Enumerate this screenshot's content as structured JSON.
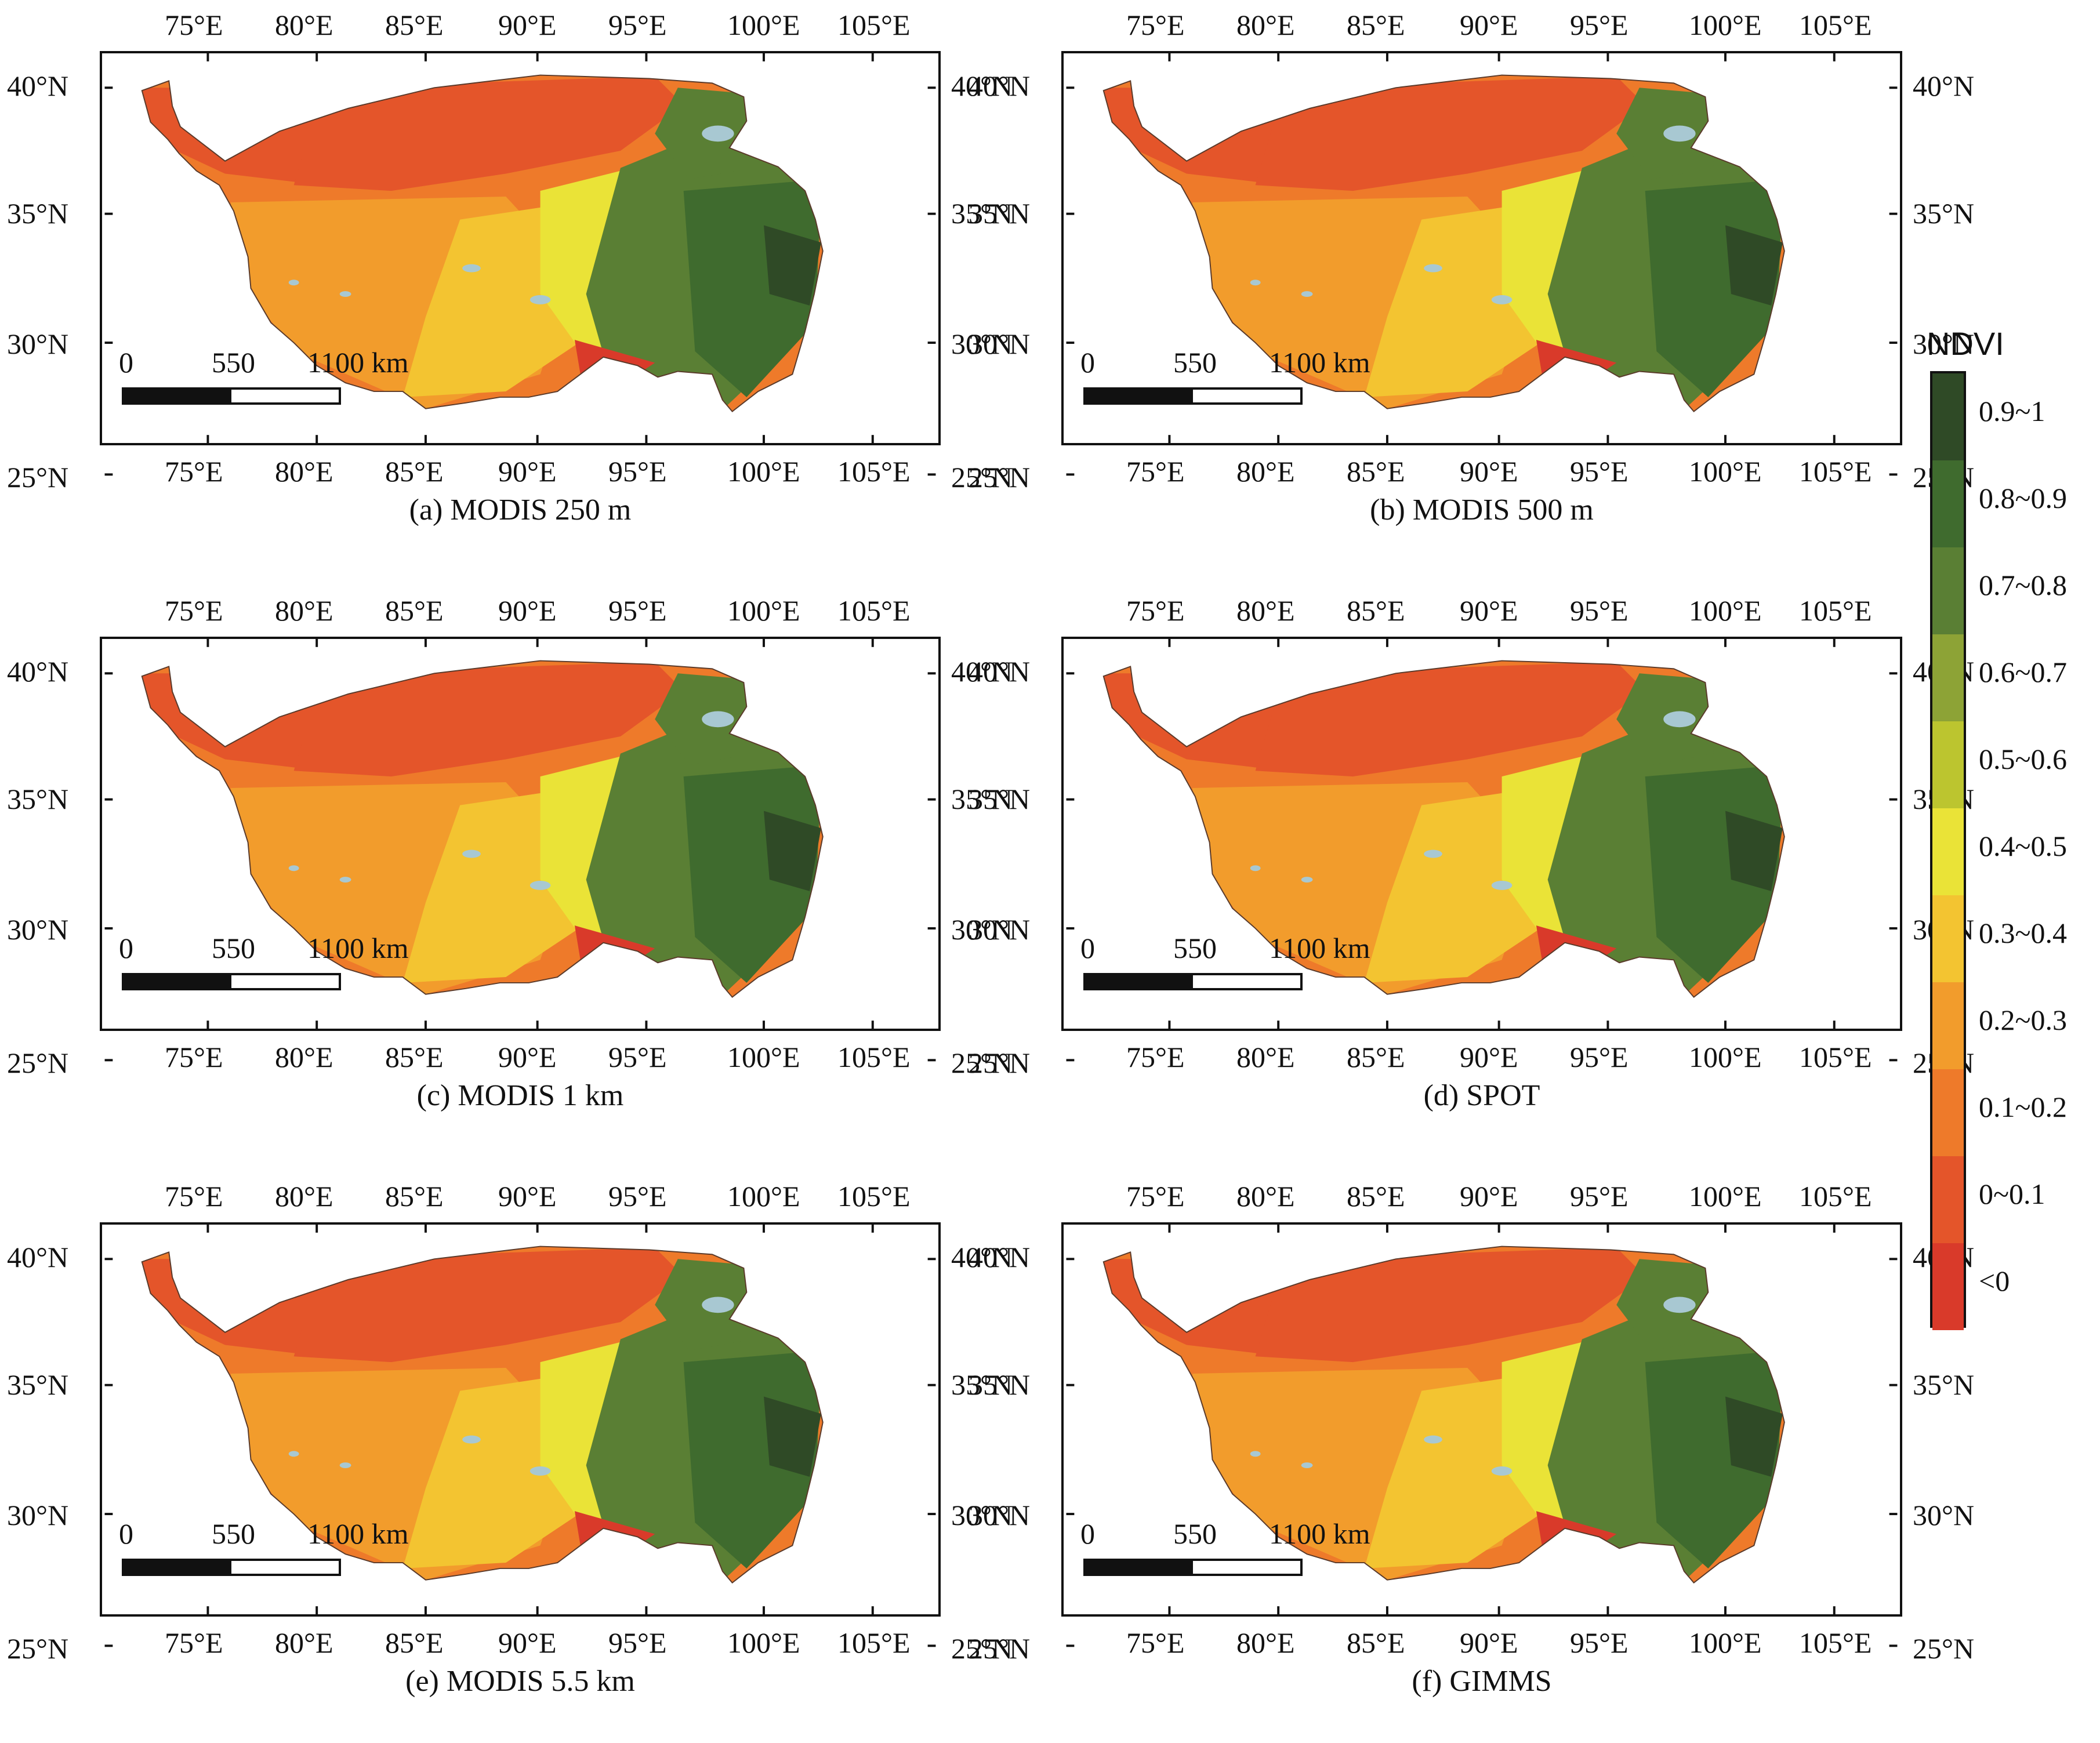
{
  "axes": {
    "top_lon_labels": [
      "75°E",
      "80°E",
      "85°E",
      "90°E",
      "95°E",
      "100°E",
      "105°E"
    ],
    "bottom_lon_labels": [
      "75°E",
      "80°E",
      "85°E",
      "90°E",
      "95°E",
      "100°E",
      "105°E"
    ],
    "left_lat_labels": [
      "40°N",
      "35°N",
      "30°N",
      "25°N"
    ],
    "right_lat_labels": [
      "40°N",
      "35°N",
      "30°N",
      "25°N"
    ]
  },
  "scalebar": {
    "ticks": [
      "0",
      "550",
      "1100 km"
    ]
  },
  "panels": [
    {
      "id": "a",
      "caption": "(a) MODIS 250 m"
    },
    {
      "id": "b",
      "caption": "(b) MODIS 500 m"
    },
    {
      "id": "c",
      "caption": "(c) MODIS 1 km"
    },
    {
      "id": "d",
      "caption": "(d) SPOT"
    },
    {
      "id": "e",
      "caption": "(e) MODIS 5.5 km"
    },
    {
      "id": "f",
      "caption": "(f) GIMMS"
    }
  ],
  "legend": {
    "title": "NDVI",
    "classes": [
      {
        "label": "0.9~1",
        "color": "#2f4a26"
      },
      {
        "label": "0.8~0.9",
        "color": "#3f6b2e"
      },
      {
        "label": "0.7~0.8",
        "color": "#5a7f34"
      },
      {
        "label": "0.6~0.7",
        "color": "#8da336"
      },
      {
        "label": "0.5~0.6",
        "color": "#bcc52f"
      },
      {
        "label": "0.4~0.5",
        "color": "#eae337"
      },
      {
        "label": "0.3~0.4",
        "color": "#f3c431"
      },
      {
        "label": "0.2~0.3",
        "color": "#f29c2c"
      },
      {
        "label": "0.1~0.2",
        "color": "#ee7a2a"
      },
      {
        "label": "0~0.1",
        "color": "#e4552a"
      },
      {
        "label": "<0",
        "color": "#d93a2a"
      }
    ],
    "water_color": "#a8c8d2"
  }
}
